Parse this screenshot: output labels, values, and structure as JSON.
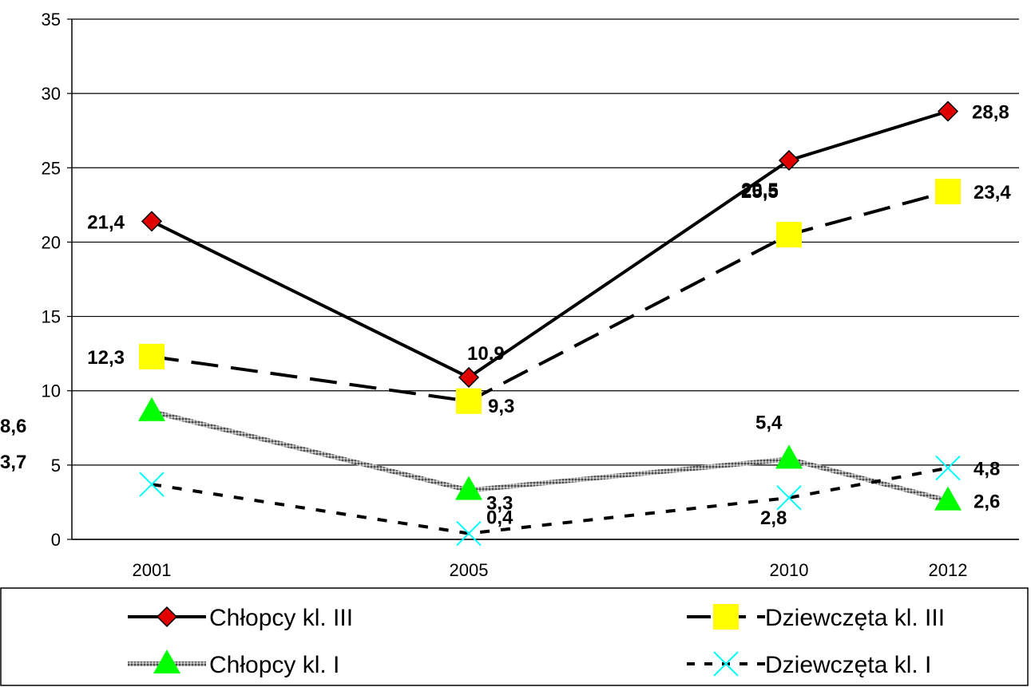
{
  "chart_data": {
    "type": "line",
    "x": [
      "2001",
      "2005",
      "2010",
      "2012"
    ],
    "ylim": [
      0,
      35
    ],
    "yticks": [
      "0",
      "5",
      "10",
      "15",
      "20",
      "25",
      "30",
      "35"
    ],
    "grid": "horizontal",
    "legend_position": "bottom",
    "series": [
      {
        "name": "Chłopcy kl. III",
        "values": [
          21.4,
          10.9,
          25.5,
          28.8
        ],
        "labels": [
          "21,4",
          "10,9",
          "25,5",
          "28,8"
        ],
        "color": "#000000",
        "marker": "diamond",
        "marker_color": "#e00000",
        "line_style": "solid"
      },
      {
        "name": "Dziewczęta kl. III",
        "values": [
          12.3,
          9.3,
          20.5,
          23.4
        ],
        "labels": [
          "12,3",
          "9,3",
          "20,5",
          "23,4"
        ],
        "color": "#000000",
        "marker": "square",
        "marker_color": "#ffff00",
        "line_style": "dashed"
      },
      {
        "name": "Chłopcy kl. I",
        "values": [
          8.6,
          3.3,
          5.4,
          2.6
        ],
        "labels": [
          "8,6",
          "3,3",
          "5,4",
          "2,6"
        ],
        "color": "#808080",
        "marker": "triangle",
        "marker_color": "#00ff00",
        "line_style": "textured"
      },
      {
        "name": "Dziewczęta kl. I",
        "values": [
          3.7,
          0.4,
          2.8,
          4.8
        ],
        "labels": [
          "3,7",
          "0,4",
          "2,8",
          "4,8"
        ],
        "color": "#000000",
        "marker": "x",
        "marker_color": "#00ffff",
        "line_style": "dotted"
      }
    ]
  }
}
